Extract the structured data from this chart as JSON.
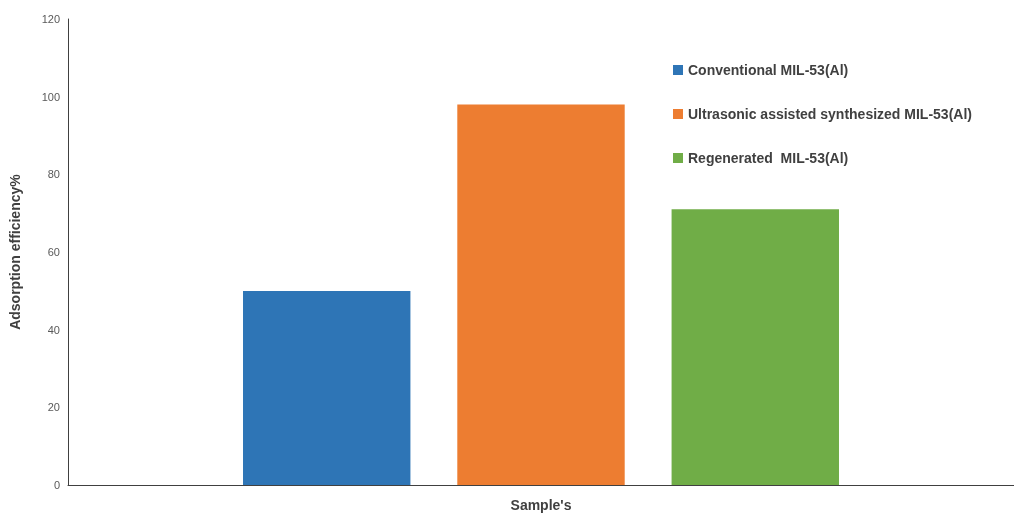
{
  "chart_data": {
    "type": "bar",
    "xlabel": "Sample's",
    "ylabel": "Adsorption efficiency%",
    "categories": [
      null
    ],
    "series": [
      {
        "name": "Conventional MIL-53(Al)",
        "color": "#2e75b6",
        "values": [
          50
        ]
      },
      {
        "name": "Ultrasonic assisted synthesized MIL-53(Al)",
        "color": "#ed7d31",
        "values": [
          98
        ]
      },
      {
        "name": "Regenerated  MIL-53(Al)",
        "color": "#70ad47",
        "values": [
          71
        ]
      }
    ],
    "ylim": [
      0,
      120
    ],
    "yticks": [
      0,
      20,
      40,
      60,
      80,
      100,
      120
    ],
    "grid": false,
    "legend": "top right"
  }
}
